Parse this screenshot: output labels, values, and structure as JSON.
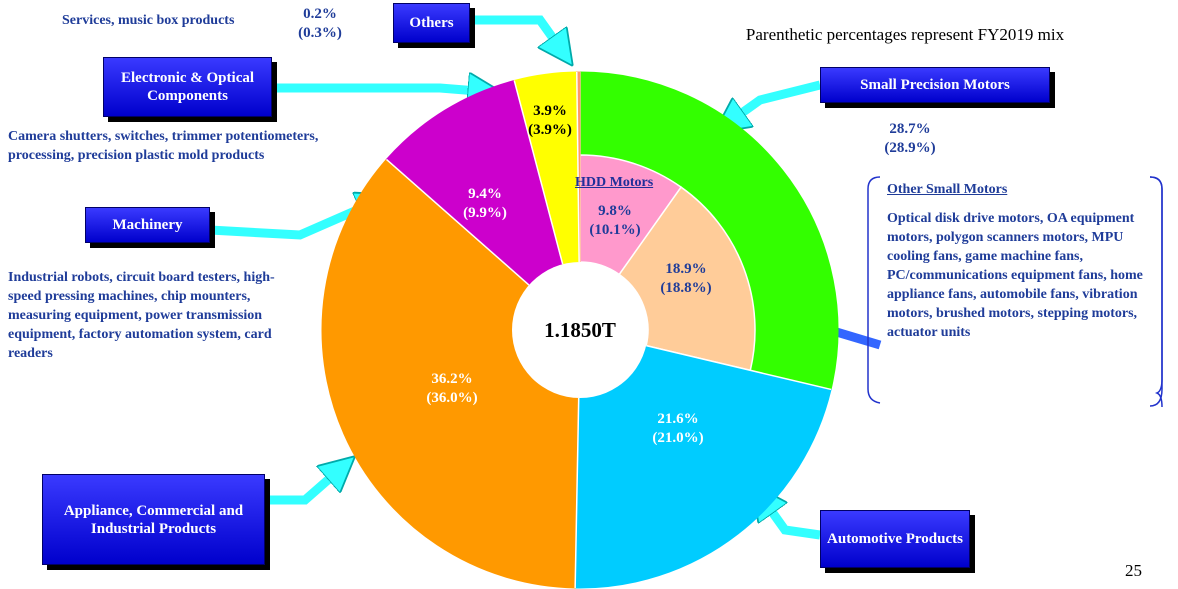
{
  "chart_data": {
    "type": "donut",
    "note": "Parenthetic percentages represent FY2019 mix",
    "center_label": "1.1850T",
    "page_number": "25",
    "segments": [
      {
        "name": "Small Precision Motors",
        "value": 28.7,
        "value_label": "28.7%",
        "prior_value": 28.9,
        "prior_value_label": "(28.9%)",
        "color": "#33ff00",
        "children": [
          {
            "name": "HDD Motors",
            "value": 9.8,
            "value_label": "9.8%",
            "prior_value": 10.1,
            "prior_value_label": "(10.1%)",
            "color": "#ff99cc"
          },
          {
            "name": "Other Small Motors",
            "value": 18.9,
            "value_label": "18.9%",
            "prior_value": 18.8,
            "prior_value_label": "(18.8%)",
            "color": "#ffcc99",
            "description": "Optical disk drive motors, OA equipment motors, polygon scanners motors, MPU cooling fans, game machine fans, PC/communications equipment fans, home appliance fans, automobile fans, vibration motors, brushed motors, stepping motors, actuator units"
          }
        ]
      },
      {
        "name": "Automotive Products",
        "value": 21.6,
        "value_label": "21.6%",
        "prior_value": 21.0,
        "prior_value_label": "(21.0%)",
        "color": "#00ccff"
      },
      {
        "name": "Appliance, Commercial and Industrial Products",
        "value": 36.2,
        "value_label": "36.2%",
        "prior_value": 36.0,
        "prior_value_label": "(36.0%)",
        "color": "#ff9900"
      },
      {
        "name": "Machinery",
        "value": 9.4,
        "value_label": "9.4%",
        "prior_value": 9.9,
        "prior_value_label": "(9.9%)",
        "color": "#cc00cc",
        "description": "Industrial robots, circuit board testers, high-speed pressing machines, chip mounters, measuring equipment, power transmission equipment, factory automation system, card readers"
      },
      {
        "name": "Electronic & Optical Components",
        "value": 3.9,
        "value_label": "3.9%",
        "prior_value": 3.9,
        "prior_value_label": "(3.9%)",
        "color": "#ffff00",
        "description": "Camera shutters, switches, trimmer potentiometers, processing, precision plastic mold products"
      },
      {
        "name": "Others",
        "value": 0.2,
        "value_label": "0.2%",
        "prior_value": 0.3,
        "prior_value_label": "(0.3%)",
        "color": "#ff9966",
        "description": "Services, music box products"
      }
    ]
  }
}
